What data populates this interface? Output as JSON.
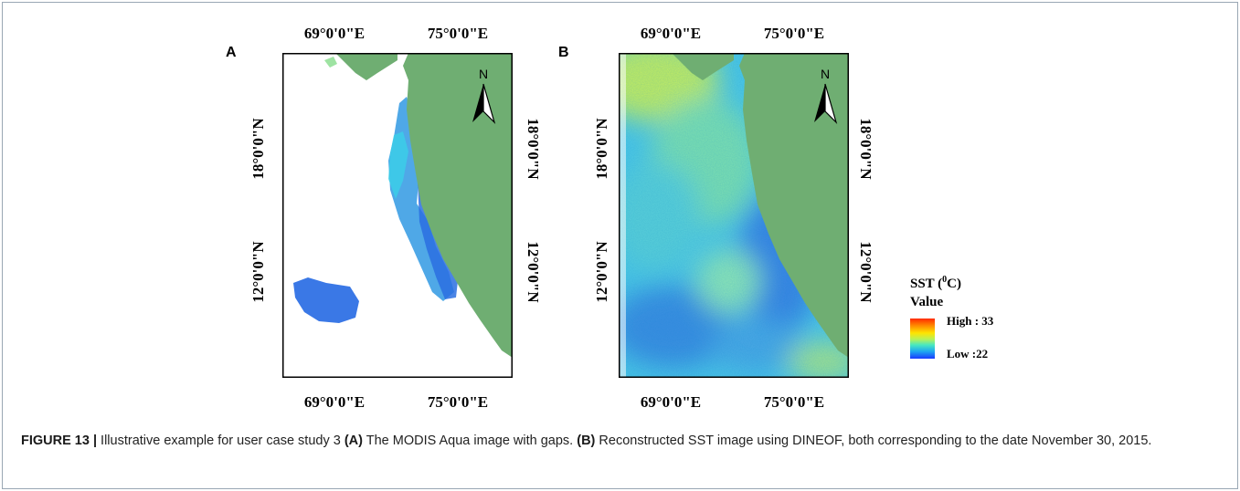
{
  "figure": {
    "panel_a": {
      "label": "A",
      "lon_top_left": "69°0'0\"E",
      "lon_top_right": "75°0'0\"E",
      "lon_bottom_left": "69°0'0\"E",
      "lon_bottom_right": "75°0'0\"E",
      "lat_left_upper": "18°0'0\"N",
      "lat_left_lower": "12°0'0\"N",
      "lat_right_upper": "18°0'0\"N",
      "lat_right_lower": "12°0'0\"N",
      "north_label": "N"
    },
    "panel_b": {
      "label": "B",
      "lon_top_left": "69°0'0\"E",
      "lon_top_right": "75°0'0\"E",
      "lon_bottom_left": "69°0'0\"E",
      "lon_bottom_right": "75°0'0\"E",
      "lat_left_upper": "18°0'0\"N",
      "lat_left_lower": "12°0'0\"N",
      "lat_right_upper": "18°0'0\"N",
      "lat_right_lower": "12°0'0\"N",
      "north_label": "N"
    },
    "legend": {
      "title_prefix": "SST (",
      "title_sup": "0",
      "title_suffix": "C)",
      "subtitle": "Value",
      "high_label": "High : 33",
      "low_label": "Low :22"
    },
    "colors": {
      "land": "#6fae72",
      "ocean_gap": "#ffffff",
      "sst_high": "#ff2a00",
      "sst_low": "#1a3aff"
    }
  },
  "caption": {
    "label": "FIGURE 13 |",
    "text_1": " Illustrative example for user case study 3 ",
    "ref_a": "(A)",
    "text_2": " The MODIS Aqua image with gaps. ",
    "ref_b": "(B)",
    "text_3": " Reconstructed SST image using DINEOF, both corresponding to the date November 30, 2015."
  }
}
